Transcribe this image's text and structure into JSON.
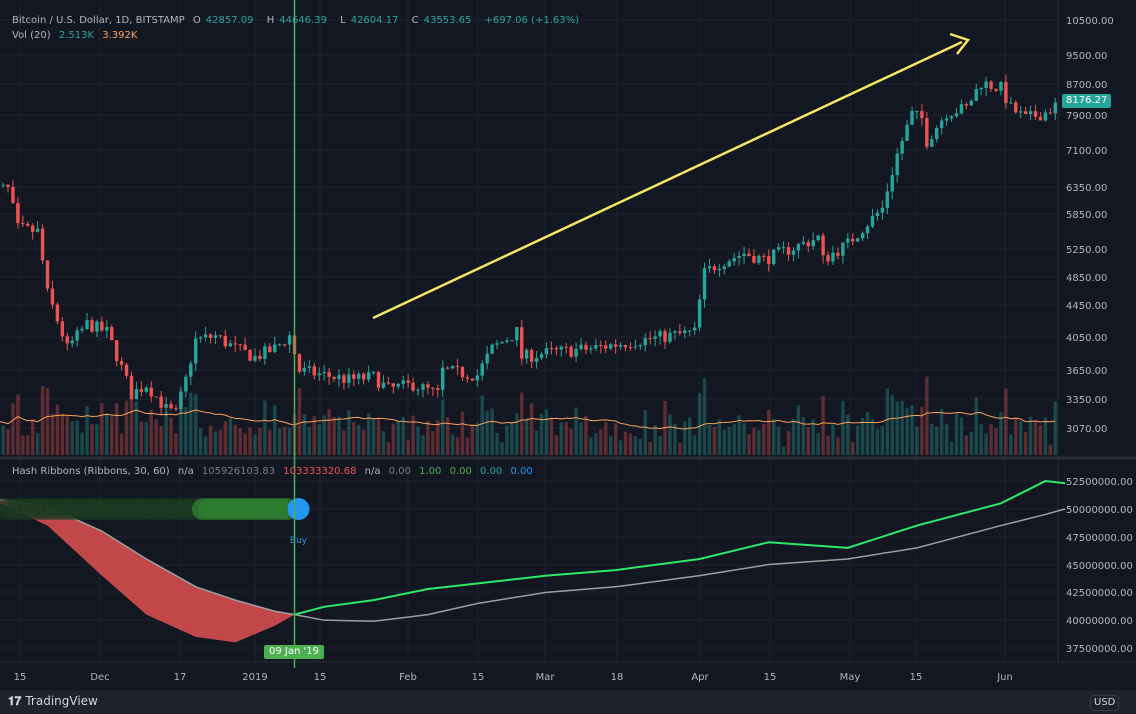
{
  "header": {
    "symbol": "Bitcoin / U.S. Dollar, 1D, BITSTAMP",
    "o": "O",
    "o_val": "42857.09",
    "h": "H",
    "h_val": "44646.39",
    "l": "L",
    "l_val": "42604.17",
    "c": "C",
    "c_val": "43553.65",
    "change": "+697.06 (+1.63%)",
    "vol_label": "Vol (20)",
    "vol_a": "2.513K",
    "vol_b": "3.392K"
  },
  "indicator": {
    "name": "Hash Ribbons (Ribbons, 30, 60)",
    "v1": "n/a",
    "v2": "105926103.83",
    "v3": "103333320.68",
    "v4": "n/a",
    "v5": "0.00",
    "v6": "1.00",
    "v7": "0.00",
    "v8": "0.00",
    "v9": "0.00",
    "signal_label": "Buy"
  },
  "currency": "USD",
  "last_price": "8176.27",
  "crosshair_date": "09 Jan '19",
  "footer": {
    "brand": "TradingView",
    "logo": "17"
  },
  "colors": {
    "up": "#26a69a",
    "down": "#ef5350",
    "arrow": "#f5e663",
    "fast": "#2ee86a",
    "slow": "#9e9e9e",
    "ribbon_red": "#e05050",
    "buy": "#2196f3",
    "crosshair": "#4caf50"
  },
  "chart_data": [
    {
      "type": "candlestick",
      "scale": "log",
      "price_ticks": [
        "10500.00",
        "9500.00",
        "8700.00",
        "7900.00",
        "7100.00",
        "6350.00",
        "5850.00",
        "5250.00",
        "4850.00",
        "4450.00",
        "4050.00",
        "3650.00",
        "3350.00",
        "3070.00"
      ],
      "x_ticks": [
        "15",
        "Dec",
        "17",
        "2019",
        "15",
        "Feb",
        "15",
        "Mar",
        "18",
        "Apr",
        "15",
        "May",
        "15",
        "Jun"
      ],
      "closes": [
        [
          "2018-11-08",
          6350
        ],
        [
          "2018-11-12",
          6300
        ],
        [
          "2018-11-14",
          5600
        ],
        [
          "2018-11-18",
          5550
        ],
        [
          "2018-11-20",
          4600
        ],
        [
          "2018-11-24",
          3900
        ],
        [
          "2018-11-28",
          4200
        ],
        [
          "2018-12-02",
          4100
        ],
        [
          "2018-12-07",
          3400
        ],
        [
          "2018-12-10",
          3500
        ],
        [
          "2018-12-14",
          3250
        ],
        [
          "2018-12-16",
          3200
        ],
        [
          "2018-12-18",
          3550
        ],
        [
          "2018-12-20",
          4000
        ],
        [
          "2018-12-24",
          4050
        ],
        [
          "2018-12-28",
          3900
        ],
        [
          "2019-01-01",
          3800
        ],
        [
          "2019-01-05",
          3900
        ],
        [
          "2019-01-08",
          4050
        ],
        [
          "2019-01-10",
          3650
        ],
        [
          "2019-01-15",
          3600
        ],
        [
          "2019-01-20",
          3550
        ],
        [
          "2019-01-25",
          3580
        ],
        [
          "2019-01-28",
          3450
        ],
        [
          "2019-02-02",
          3500
        ],
        [
          "2019-02-07",
          3400
        ],
        [
          "2019-02-08",
          3650
        ],
        [
          "2019-02-15",
          3600
        ],
        [
          "2019-02-18",
          3900
        ],
        [
          "2019-02-23",
          4100
        ],
        [
          "2019-02-24",
          3800
        ],
        [
          "2019-03-01",
          3850
        ],
        [
          "2019-03-10",
          3900
        ],
        [
          "2019-03-20",
          4000
        ],
        [
          "2019-03-31",
          4100
        ],
        [
          "2019-04-02",
          4900
        ],
        [
          "2019-04-05",
          5050
        ],
        [
          "2019-04-10",
          5200
        ],
        [
          "2019-04-14",
          5100
        ],
        [
          "2019-04-22",
          5350
        ],
        [
          "2019-04-25",
          5450
        ],
        [
          "2019-04-26",
          5100
        ],
        [
          "2019-05-01",
          5350
        ],
        [
          "2019-05-08",
          5950
        ],
        [
          "2019-05-11",
          7000
        ],
        [
          "2019-05-14",
          7900
        ],
        [
          "2019-05-16",
          7800
        ],
        [
          "2019-05-17",
          7300
        ],
        [
          "2019-05-21",
          7950
        ],
        [
          "2019-05-25",
          8050
        ],
        [
          "2019-05-28",
          8700
        ],
        [
          "2019-06-01",
          8550
        ],
        [
          "2019-06-03",
          8050
        ],
        [
          "2019-06-06",
          7800
        ],
        [
          "2019-06-10",
          7950
        ],
        [
          "2019-06-13",
          8176.27
        ]
      ]
    },
    {
      "type": "line",
      "name": "Hash Ribbons (Ribbons, 30, 60)",
      "y_ticks": [
        "52500000.00",
        "50000000.00",
        "47500000.00",
        "45000000.00",
        "42500000.00",
        "40000000.00",
        "37500000.00"
      ],
      "ylim": [
        37500000,
        52500000
      ],
      "points_millions": [
        [
          "2018-11-08",
          51.0,
          51.0
        ],
        [
          "2018-11-20",
          48.5,
          50.2
        ],
        [
          "2018-12-01",
          44.0,
          48.0
        ],
        [
          "2018-12-10",
          40.5,
          45.5
        ],
        [
          "2018-12-20",
          38.5,
          43.0
        ],
        [
          "2018-12-28",
          38.0,
          41.8
        ],
        [
          "2019-01-05",
          39.5,
          40.8
        ],
        [
          "2019-01-09",
          40.5,
          40.5
        ],
        [
          "2019-01-15",
          41.2,
          40.0
        ],
        [
          "2019-01-25",
          41.8,
          39.9
        ],
        [
          "2019-02-05",
          42.8,
          40.5
        ],
        [
          "2019-02-15",
          43.3,
          41.5
        ],
        [
          "2019-03-01",
          44.0,
          42.5
        ],
        [
          "2019-03-15",
          44.5,
          43.0
        ],
        [
          "2019-04-01",
          45.5,
          44.0
        ],
        [
          "2019-04-15",
          47.0,
          45.0
        ],
        [
          "2019-05-01",
          46.5,
          45.5
        ],
        [
          "2019-05-15",
          48.5,
          46.5
        ],
        [
          "2019-06-01",
          50.5,
          48.5
        ],
        [
          "2019-06-10",
          52.5,
          49.5
        ],
        [
          "2019-06-14",
          52.3,
          50.0
        ]
      ],
      "buy_signal_date": "2019-01-09"
    }
  ]
}
